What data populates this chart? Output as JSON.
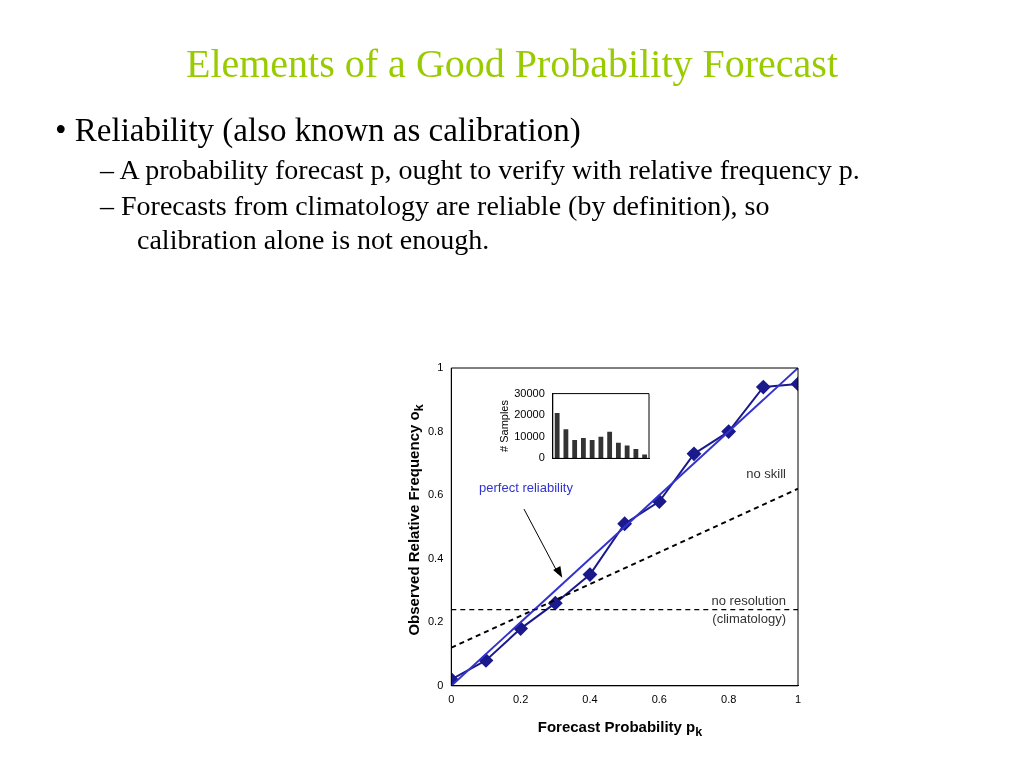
{
  "chart_data": [
    {
      "type": "line",
      "title": "Elements of a Good Probability Forecast",
      "annotations": [
        "• Reliability (also known as calibration)",
        "– A probability forecast p, ought to verify with relative frequency p.",
        "– Forecasts from climatology are reliable (by definition), so calibration alone is not enough."
      ],
      "xlabel": "Forecast Probability p$_{k}$",
      "ylabel": "Observed Relative Frequency o$_{k}$",
      "xlim": [
        0,
        1
      ],
      "ylim": [
        0,
        1
      ],
      "xticks": [
        0,
        0.2,
        0.4,
        0.6,
        0.8,
        1
      ],
      "yticks": [
        0,
        0.2,
        0.4,
        0.6,
        0.8,
        1
      ],
      "grid": false,
      "legend": false,
      "series": [
        {
          "type": "line",
          "name": "perfect reliability",
          "color": "#3333cc",
          "x": [
            0,
            1
          ],
          "values": [
            0,
            1
          ],
          "marker": "none",
          "line_style": "solid"
        },
        {
          "type": "line",
          "name": "no skill",
          "color": "#000000",
          "x": [
            0,
            1
          ],
          "values": [
            0.12,
            0.62
          ],
          "marker": "none",
          "line_style": "dashed"
        },
        {
          "type": "line",
          "color": "#1a1a8c",
          "x": [
            0,
            0.1,
            0.2,
            0.3,
            0.4,
            0.5,
            0.6,
            0.7,
            0.8,
            0.9,
            1
          ],
          "values": [
            0.02,
            0.08,
            0.18,
            0.26,
            0.35,
            0.51,
            0.58,
            0.73,
            0.8,
            0.94,
            0.95
          ],
          "marker": "diamond",
          "line_style": "solid"
        }
      ],
      "ref_lines": [
        {
          "axis": "y",
          "value": 0.24,
          "label": "no resolution\n(climatology)",
          "color": "#000000",
          "line_style": "dashed"
        }
      ]
    },
    {
      "type": "bar",
      "categories": [
        null,
        null,
        null,
        null,
        null,
        null,
        null,
        null,
        null,
        null,
        null
      ],
      "values": [
        21000,
        13500,
        8500,
        9500,
        8500,
        10000,
        12300,
        7300,
        6000,
        4300,
        1800
      ],
      "color": "#333333",
      "ylabel": "# Samples",
      "ylim": [
        0,
        30000
      ],
      "yticks": [
        0,
        10000,
        20000,
        30000
      ],
      "tick_labels": "y",
      "grid": false
    }
  ]
}
